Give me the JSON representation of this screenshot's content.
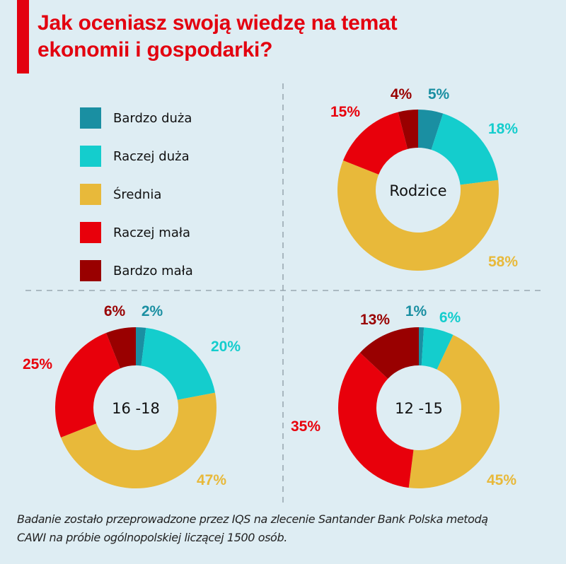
{
  "title_line1": "Jak oceniasz swoją wiedzę na temat",
  "title_line2": "ekonomii i gospodarki?",
  "legend": [
    {
      "label": "Bardzo duża",
      "color": "#1a8fa2"
    },
    {
      "label": "Raczej duża",
      "color": "#14cdcd"
    },
    {
      "label": "Średnia",
      "color": "#e8b93a"
    },
    {
      "label": "Raczej mała",
      "color": "#e8000b"
    },
    {
      "label": "Bardzo mała",
      "color": "#990000"
    }
  ],
  "chart_data": [
    {
      "type": "pie",
      "title": "Rodzice",
      "categories": [
        "Bardzo duża",
        "Raczej duża",
        "Średnia",
        "Raczej mała",
        "Bardzo mała"
      ],
      "values": [
        5,
        18,
        58,
        15,
        4
      ],
      "labels": [
        "5%",
        "18%",
        "58%",
        "15%",
        "4%"
      ]
    },
    {
      "type": "pie",
      "title": "16 -18",
      "categories": [
        "Bardzo duża",
        "Raczej duża",
        "Średnia",
        "Raczej mała",
        "Bardzo mała"
      ],
      "values": [
        2,
        20,
        47,
        25,
        6
      ],
      "labels": [
        "2%",
        "20%",
        "47%",
        "25%",
        "6%"
      ]
    },
    {
      "type": "pie",
      "title": "12 -15",
      "categories": [
        "Bardzo duża",
        "Raczej duża",
        "Średnia",
        "Raczej mała",
        "Bardzo mała"
      ],
      "values": [
        1,
        6,
        45,
        35,
        13
      ],
      "labels": [
        "1%",
        "6%",
        "45%",
        "35%",
        "13%"
      ]
    }
  ],
  "footnote_line1": "Badanie zostało przeprowadzone przez IQS na zlecenie Santander Bank Polska metodą",
  "footnote_line2": "CAWI na próbie ogólnopolskiej liczącej 1500 osób."
}
